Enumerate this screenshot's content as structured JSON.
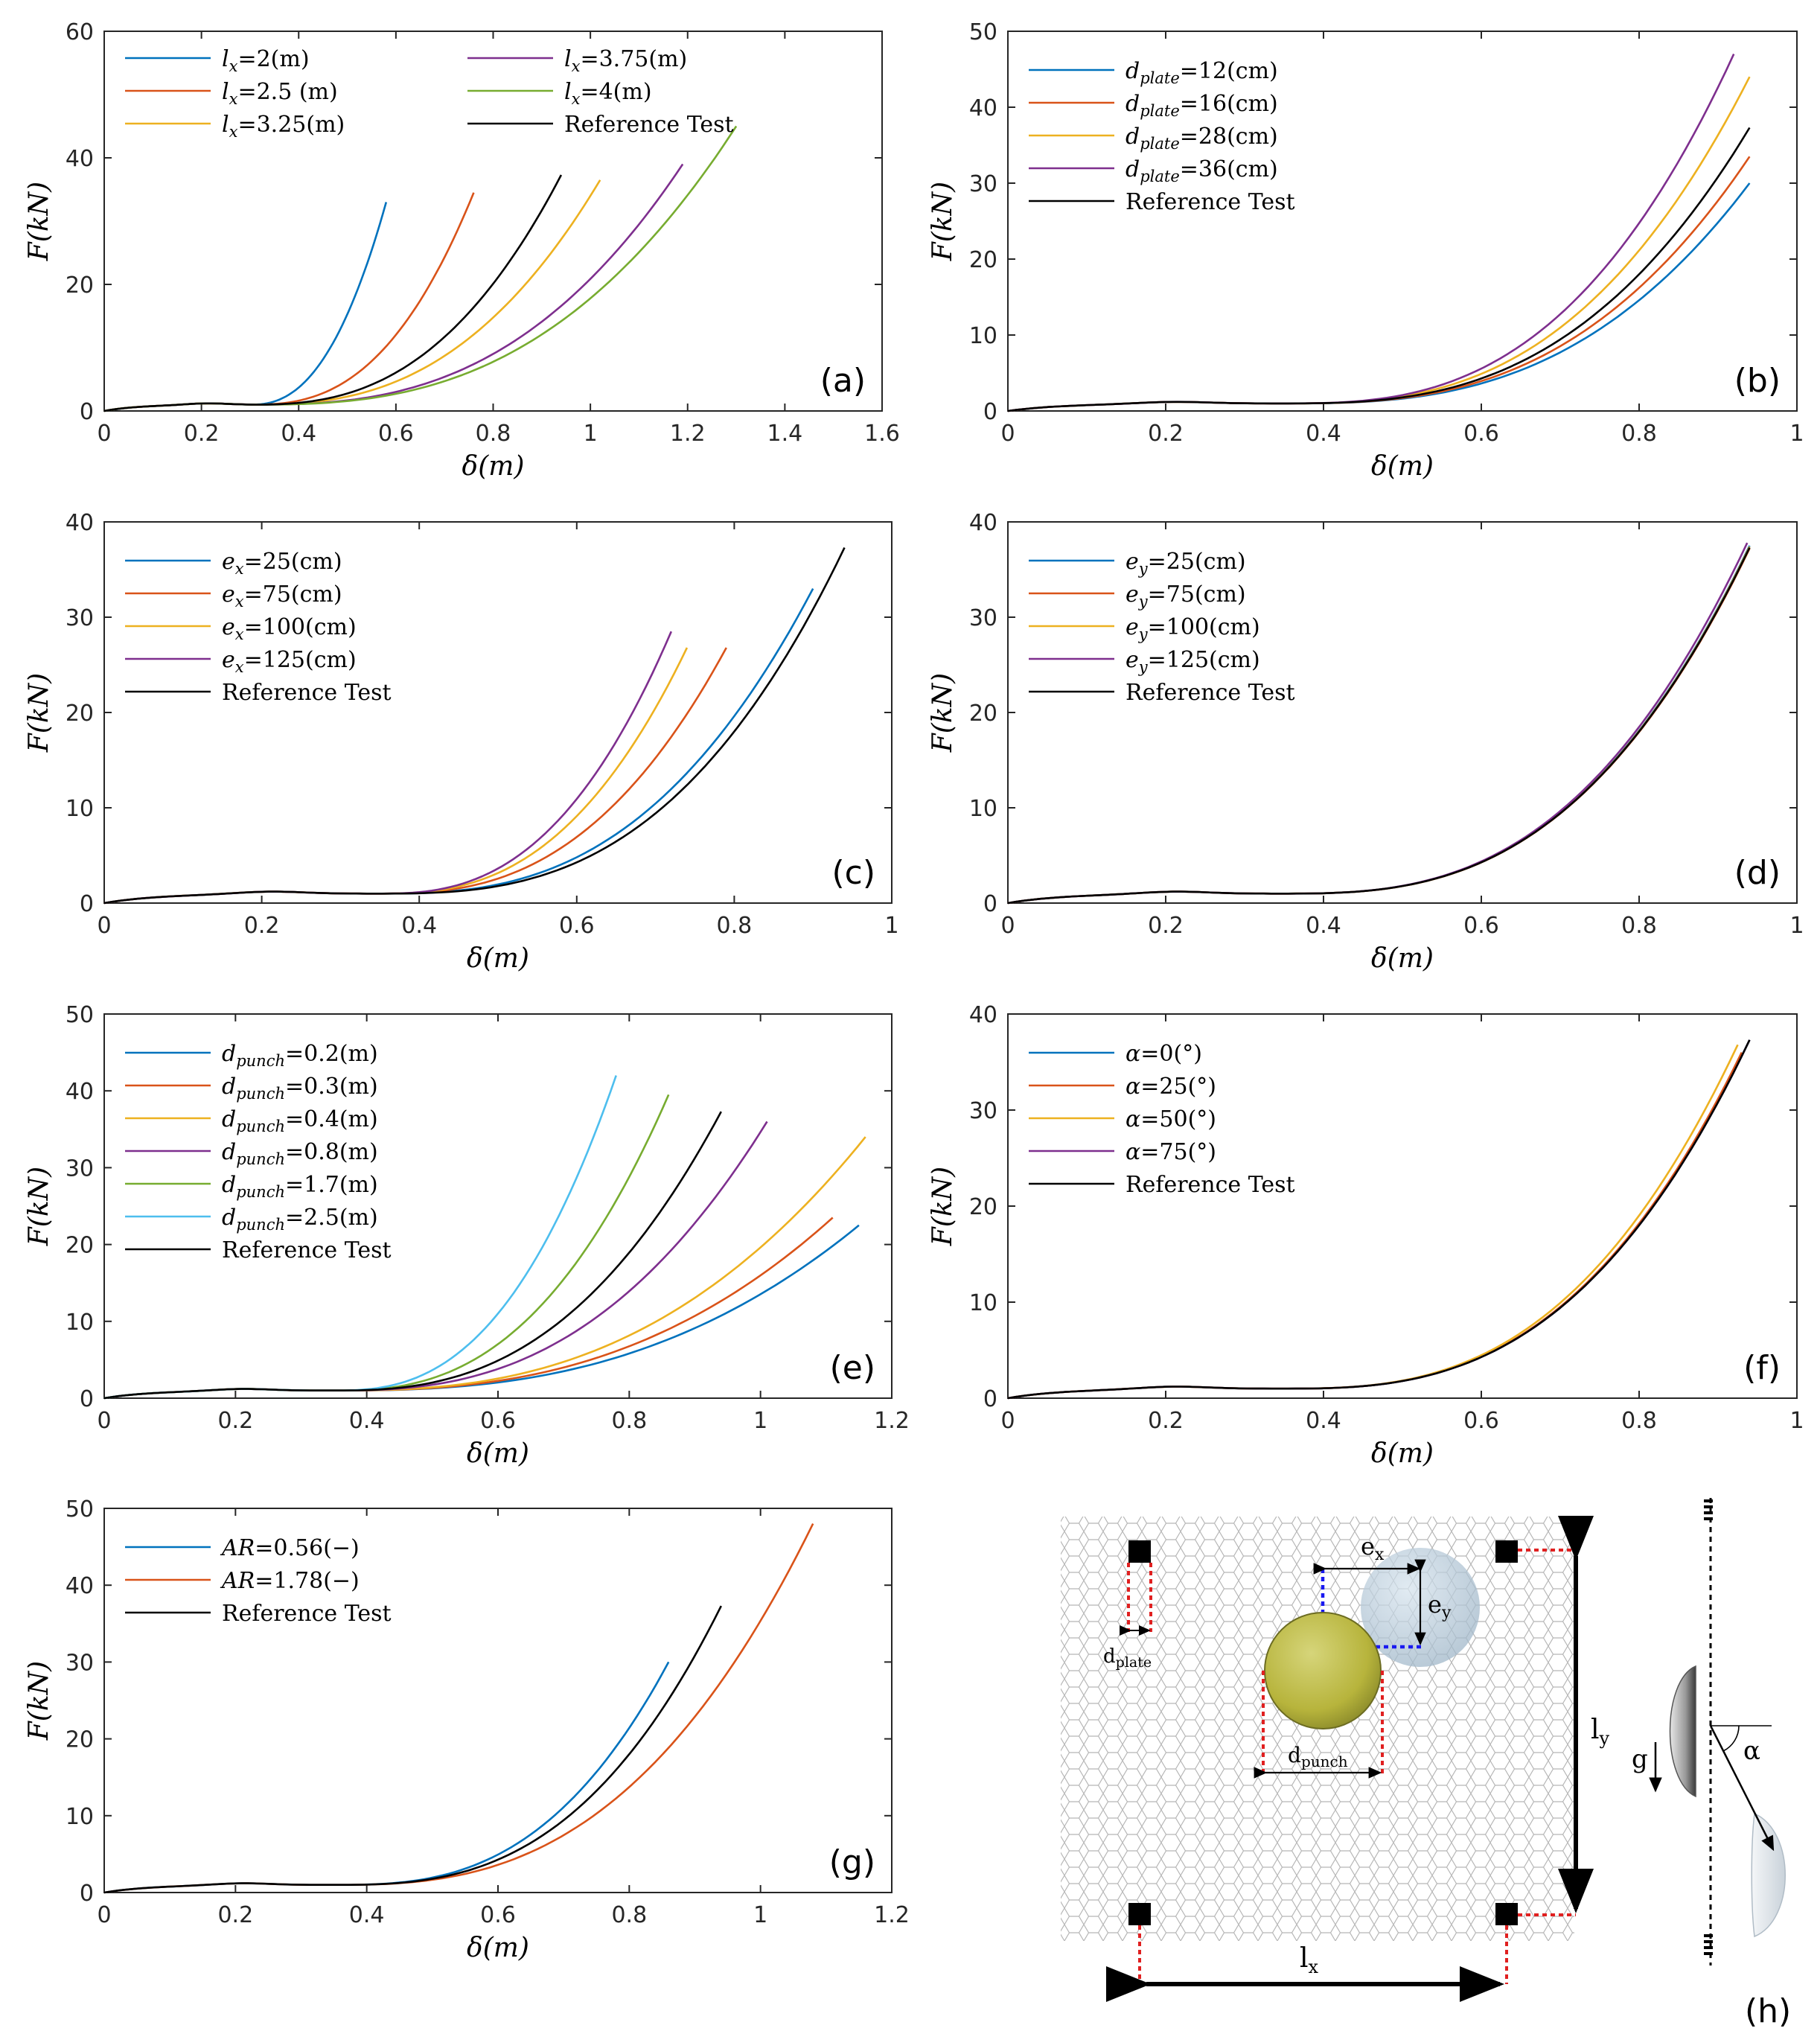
{
  "colors": {
    "blue": "#0072BD",
    "red": "#D95319",
    "yellow": "#EDB120",
    "purple": "#7E2F8E",
    "green": "#77AC30",
    "cyan": "#4DBEEE",
    "black": "#000000",
    "axis": "#262626"
  },
  "chart_data": [
    {
      "id": "a",
      "type": "line",
      "panel_label": "(a)",
      "xlabel": "δ(m)",
      "ylabel": "F(kN)",
      "xlim": [
        0,
        1.6
      ],
      "ylim": [
        0,
        60
      ],
      "xticks": [
        "0",
        "0.2",
        "0.4",
        "0.6",
        "0.8",
        "1",
        "1.2",
        "1.4",
        "1.6"
      ],
      "yticks": [
        "0",
        "20",
        "40",
        "60"
      ],
      "legend": {
        "columns": 2,
        "placement": "top-left"
      },
      "series": [
        {
          "name": "lx=2(m)",
          "sym": "l",
          "sub": "x",
          "rest": "=2(m)",
          "color": "blue",
          "xmax": 0.58,
          "ymax": 33,
          "onset": 0.3,
          "expo": 2.4
        },
        {
          "name": "lx=2.5 (m)",
          "sym": "l",
          "sub": "x",
          "rest": "=2.5 (m)",
          "color": "red",
          "xmax": 0.76,
          "ymax": 34.5,
          "onset": 0.3,
          "expo": 2.6
        },
        {
          "name": "lx=3.25(m)",
          "sym": "l",
          "sub": "x",
          "rest": "=3.25(m)",
          "color": "yellow",
          "xmax": 1.02,
          "ymax": 36.5,
          "onset": 0.3,
          "expo": 2.6
        },
        {
          "name": "lx=3.75(m)",
          "sym": "l",
          "sub": "x",
          "rest": "=3.75(m)",
          "color": "purple",
          "xmax": 1.19,
          "ymax": 39,
          "onset": 0.3,
          "expo": 2.7
        },
        {
          "name": "lx=4(m)",
          "sym": "l",
          "sub": "x",
          "rest": "=4(m)",
          "color": "green",
          "xmax": 1.3,
          "ymax": 45,
          "onset": 0.3,
          "expo": 2.7
        },
        {
          "name": "Reference Test",
          "sym": "",
          "sub": "",
          "rest": "Reference Test",
          "color": "black",
          "xmax": 0.94,
          "ymax": 37.3,
          "onset": 0.3,
          "expo": 2.6
        }
      ]
    },
    {
      "id": "b",
      "type": "line",
      "panel_label": "(b)",
      "xlabel": "δ(m)",
      "ylabel": "F(kN)",
      "xlim": [
        0,
        1
      ],
      "ylim": [
        0,
        50
      ],
      "xticks": [
        "0",
        "0.2",
        "0.4",
        "0.6",
        "0.8",
        "1"
      ],
      "yticks": [
        "0",
        "10",
        "20",
        "30",
        "40",
        "50"
      ],
      "legend": {
        "columns": 1,
        "placement": "top-left"
      },
      "series": [
        {
          "name": "dplate=12(cm)",
          "sym": "d",
          "sub": "plate",
          "rest": "=12(cm)",
          "color": "blue",
          "xmax": 0.94,
          "ymax": 30,
          "onset": 0.35,
          "expo": 2.8
        },
        {
          "name": "dplate=16(cm)",
          "sym": "d",
          "sub": "plate",
          "rest": "=16(cm)",
          "color": "red",
          "xmax": 0.94,
          "ymax": 33.5,
          "onset": 0.35,
          "expo": 2.8
        },
        {
          "name": "dplate=28(cm)",
          "sym": "d",
          "sub": "plate",
          "rest": "=28(cm)",
          "color": "yellow",
          "xmax": 0.94,
          "ymax": 44,
          "onset": 0.35,
          "expo": 2.8
        },
        {
          "name": "dplate=36(cm)",
          "sym": "d",
          "sub": "plate",
          "rest": "=36(cm)",
          "color": "purple",
          "xmax": 0.92,
          "ymax": 47,
          "onset": 0.35,
          "expo": 2.8
        },
        {
          "name": "Reference Test",
          "sym": "",
          "sub": "",
          "rest": "Reference Test",
          "color": "black",
          "xmax": 0.94,
          "ymax": 37.3,
          "onset": 0.35,
          "expo": 2.8
        }
      ]
    },
    {
      "id": "c",
      "type": "line",
      "panel_label": "(c)",
      "xlabel": "δ(m)",
      "ylabel": "F(kN)",
      "xlim": [
        0,
        1
      ],
      "ylim": [
        0,
        40
      ],
      "xticks": [
        "0",
        "0.2",
        "0.4",
        "0.6",
        "0.8",
        "1"
      ],
      "yticks": [
        "0",
        "10",
        "20",
        "30",
        "40"
      ],
      "legend": {
        "columns": 1,
        "placement": "top-left"
      },
      "series": [
        {
          "name": "ex=25(cm)",
          "sym": "e",
          "sub": "x",
          "rest": "=25(cm)",
          "color": "blue",
          "xmax": 0.9,
          "ymax": 33,
          "onset": 0.35,
          "expo": 2.7
        },
        {
          "name": "ex=75(cm)",
          "sym": "e",
          "sub": "x",
          "rest": "=75(cm)",
          "color": "red",
          "xmax": 0.79,
          "ymax": 26.8,
          "onset": 0.35,
          "expo": 2.6
        },
        {
          "name": "ex=100(cm)",
          "sym": "e",
          "sub": "x",
          "rest": "=100(cm)",
          "color": "yellow",
          "xmax": 0.74,
          "ymax": 26.8,
          "onset": 0.35,
          "expo": 2.6
        },
        {
          "name": "ex=125(cm)",
          "sym": "e",
          "sub": "x",
          "rest": "=125(cm)",
          "color": "purple",
          "xmax": 0.72,
          "ymax": 28.5,
          "onset": 0.35,
          "expo": 2.6
        },
        {
          "name": "Reference Test",
          "sym": "",
          "sub": "",
          "rest": "Reference Test",
          "color": "black",
          "xmax": 0.94,
          "ymax": 37.3,
          "onset": 0.35,
          "expo": 2.8
        }
      ]
    },
    {
      "id": "d",
      "type": "line",
      "panel_label": "(d)",
      "xlabel": "δ(m)",
      "ylabel": "F(kN)",
      "xlim": [
        0,
        1
      ],
      "ylim": [
        0,
        40
      ],
      "xticks": [
        "0",
        "0.2",
        "0.4",
        "0.6",
        "0.8",
        "1"
      ],
      "yticks": [
        "0",
        "10",
        "20",
        "30",
        "40"
      ],
      "legend": {
        "columns": 1,
        "placement": "top-left"
      },
      "series": [
        {
          "name": "ey=25(cm)",
          "sym": "e",
          "sub": "y",
          "rest": "=25(cm)",
          "color": "blue",
          "xmax": 0.94,
          "ymax": 37.5,
          "onset": 0.35,
          "expo": 2.8
        },
        {
          "name": "ey=75(cm)",
          "sym": "e",
          "sub": "y",
          "rest": "=75(cm)",
          "color": "red",
          "xmax": 0.94,
          "ymax": 37.2,
          "onset": 0.35,
          "expo": 2.8
        },
        {
          "name": "ey=100(cm)",
          "sym": "e",
          "sub": "y",
          "rest": "=100(cm)",
          "color": "yellow",
          "xmax": 0.94,
          "ymax": 37.4,
          "onset": 0.35,
          "expo": 2.8
        },
        {
          "name": "ey=125(cm)",
          "sym": "e",
          "sub": "y",
          "rest": "=125(cm)",
          "color": "purple",
          "xmax": 0.937,
          "ymax": 37.8,
          "onset": 0.35,
          "expo": 2.8
        },
        {
          "name": "Reference Test",
          "sym": "",
          "sub": "",
          "rest": "Reference Test",
          "color": "black",
          "xmax": 0.94,
          "ymax": 37.3,
          "onset": 0.35,
          "expo": 2.8
        }
      ]
    },
    {
      "id": "e",
      "type": "line",
      "panel_label": "(e)",
      "xlabel": "δ(m)",
      "ylabel": "F(kN)",
      "xlim": [
        0,
        1.2
      ],
      "ylim": [
        0,
        50
      ],
      "xticks": [
        "0",
        "0.2",
        "0.4",
        "0.6",
        "0.8",
        "1",
        "1.2"
      ],
      "yticks": [
        "0",
        "10",
        "20",
        "30",
        "40",
        "50"
      ],
      "legend": {
        "columns": 1,
        "placement": "top-left"
      },
      "series": [
        {
          "name": "dpunch=0.2(m)",
          "sym": "d",
          "sub": "punch",
          "rest": "=0.2(m)",
          "color": "blue",
          "xmax": 1.15,
          "ymax": 22.5,
          "onset": 0.35,
          "expo": 2.6
        },
        {
          "name": "dpunch=0.3(m)",
          "sym": "d",
          "sub": "punch",
          "rest": "=0.3(m)",
          "color": "red",
          "xmax": 1.11,
          "ymax": 23.5,
          "onset": 0.35,
          "expo": 2.6
        },
        {
          "name": "dpunch=0.4(m)",
          "sym": "d",
          "sub": "punch",
          "rest": "=0.4(m)",
          "color": "yellow",
          "xmax": 1.16,
          "ymax": 34,
          "onset": 0.35,
          "expo": 2.6
        },
        {
          "name": "dpunch=0.8(m)",
          "sym": "d",
          "sub": "punch",
          "rest": "=0.8(m)",
          "color": "purple",
          "xmax": 1.01,
          "ymax": 36,
          "onset": 0.35,
          "expo": 2.6
        },
        {
          "name": "dpunch=1.7(m)",
          "sym": "d",
          "sub": "punch",
          "rest": "=1.7(m)",
          "color": "green",
          "xmax": 0.86,
          "ymax": 39.5,
          "onset": 0.35,
          "expo": 2.6
        },
        {
          "name": "dpunch=2.5(m)",
          "sym": "d",
          "sub": "punch",
          "rest": "=2.5(m)",
          "color": "cyan",
          "xmax": 0.78,
          "ymax": 42,
          "onset": 0.35,
          "expo": 2.6
        },
        {
          "name": "Reference Test",
          "sym": "",
          "sub": "",
          "rest": "Reference Test",
          "color": "black",
          "xmax": 0.94,
          "ymax": 37.3,
          "onset": 0.35,
          "expo": 2.6
        }
      ]
    },
    {
      "id": "f",
      "type": "line",
      "panel_label": "(f)",
      "xlabel": "δ(m)",
      "ylabel": "F(kN)",
      "xlim": [
        0,
        1
      ],
      "ylim": [
        0,
        40
      ],
      "xticks": [
        "0",
        "0.2",
        "0.4",
        "0.6",
        "0.8",
        "1"
      ],
      "yticks": [
        "0",
        "10",
        "20",
        "30",
        "40"
      ],
      "legend": {
        "columns": 1,
        "placement": "top-left"
      },
      "series": [
        {
          "name": "α=0(°)",
          "sym": "α",
          "sub": "",
          "rest": "=0(°)",
          "color": "blue",
          "xmax": 0.94,
          "ymax": 37.3,
          "onset": 0.35,
          "expo": 2.8
        },
        {
          "name": "α=25(°)",
          "sym": "α",
          "sub": "",
          "rest": "=25(°)",
          "color": "red",
          "xmax": 0.93,
          "ymax": 36,
          "onset": 0.35,
          "expo": 2.8
        },
        {
          "name": "α=50(°)",
          "sym": "α",
          "sub": "",
          "rest": "=50(°)",
          "color": "yellow",
          "xmax": 0.925,
          "ymax": 36.8,
          "onset": 0.35,
          "expo": 2.8
        },
        {
          "name": "α=75(°)",
          "sym": "α",
          "sub": "",
          "rest": "=75(°)",
          "color": "purple",
          "xmax": 0.94,
          "ymax": 37.3,
          "onset": 0.35,
          "expo": 2.8
        },
        {
          "name": "Reference Test",
          "sym": "",
          "sub": "",
          "rest": "Reference Test",
          "color": "black",
          "xmax": 0.94,
          "ymax": 37.3,
          "onset": 0.35,
          "expo": 2.8
        }
      ]
    },
    {
      "id": "g",
      "type": "line",
      "panel_label": "(g)",
      "xlabel": "δ(m)",
      "ylabel": "F(kN)",
      "xlim": [
        0,
        1.2
      ],
      "ylim": [
        0,
        50
      ],
      "xticks": [
        "0",
        "0.2",
        "0.4",
        "0.6",
        "0.8",
        "1",
        "1.2"
      ],
      "yticks": [
        "0",
        "10",
        "20",
        "30",
        "40",
        "50"
      ],
      "legend": {
        "columns": 1,
        "placement": "top-left"
      },
      "series": [
        {
          "name": "AR=0.56(−)",
          "sym": "AR",
          "sub": "",
          "rest": "=0.56(−)",
          "color": "blue",
          "xmax": 0.86,
          "ymax": 30,
          "onset": 0.35,
          "expo": 2.8
        },
        {
          "name": "AR=1.78(−)",
          "sym": "AR",
          "sub": "",
          "rest": "=1.78(−)",
          "color": "red",
          "xmax": 1.08,
          "ymax": 48,
          "onset": 0.35,
          "expo": 2.7
        },
        {
          "name": "Reference Test",
          "sym": "",
          "sub": "",
          "rest": "Reference Test",
          "color": "black",
          "xmax": 0.94,
          "ymax": 37.3,
          "onset": 0.35,
          "expo": 2.8
        }
      ]
    }
  ],
  "diagram": {
    "panel_label": "(h)",
    "labels": {
      "ex": "e",
      "ex_sub": "x",
      "ey": "e",
      "ey_sub": "y",
      "dplate": "d",
      "dplate_sub": "plate",
      "dpunch": "d",
      "dpunch_sub": "punch",
      "lx": "l",
      "lx_sub": "x",
      "ly": "l",
      "ly_sub": "y",
      "g": "g",
      "alpha": "α"
    }
  }
}
